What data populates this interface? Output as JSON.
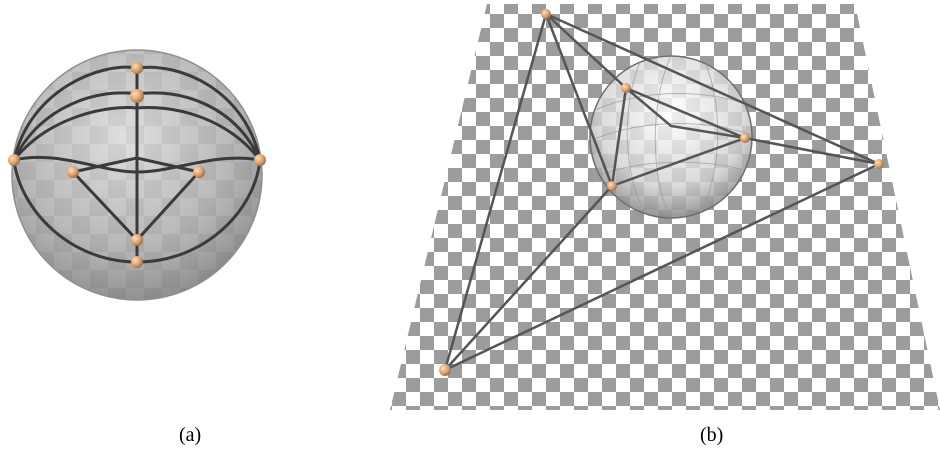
{
  "panels": [
    {
      "id": "a",
      "caption": "(a)"
    },
    {
      "id": "b",
      "caption": "(b)"
    }
  ],
  "colors": {
    "checker_dark": "#9c9c9c",
    "checker_light": "#ffffff",
    "sphere_fill": "#bdbdbd",
    "edge": "#3a3a3a",
    "vertex": "#e8b07a"
  }
}
